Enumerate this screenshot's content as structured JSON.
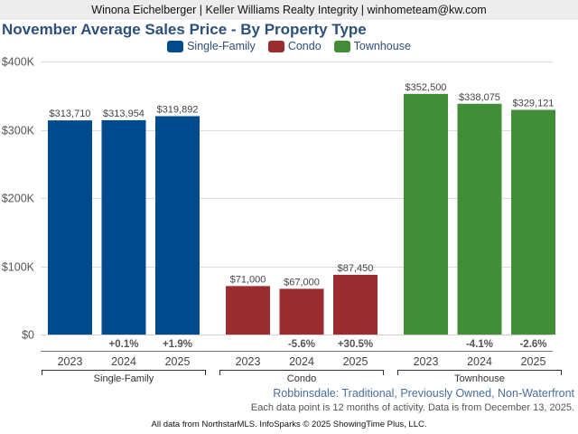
{
  "header": {
    "agent_line": "Winona Eichelberger | Keller Williams Realty Integrity | winhometeam@kw.com"
  },
  "chart_data": {
    "type": "bar",
    "title": "November Average Sales Price - By Property Type",
    "xlabel": "",
    "ylabel": "",
    "ylim": [
      0,
      400000
    ],
    "y_ticks": [
      {
        "value": 0,
        "label": "$0"
      },
      {
        "value": 100000,
        "label": "$100K"
      },
      {
        "value": 200000,
        "label": "$200K"
      },
      {
        "value": 300000,
        "label": "$300K"
      },
      {
        "value": 400000,
        "label": "$400K"
      }
    ],
    "grid": true,
    "legend_position": "top-center",
    "categories": [
      "2023",
      "2024",
      "2025"
    ],
    "groups": [
      {
        "name": "Single-Family",
        "color": "#004b8d",
        "values": [
          313710,
          313954,
          319892
        ],
        "value_labels": [
          "$313,710",
          "$313,954",
          "$319,892"
        ],
        "changes": [
          "",
          "+0.1%",
          "+1.9%"
        ]
      },
      {
        "name": "Condo",
        "color": "#9b2c2f",
        "values": [
          71000,
          67000,
          87450
        ],
        "value_labels": [
          "$71,000",
          "$67,000",
          "$87,450"
        ],
        "changes": [
          "",
          "-5.6%",
          "+30.5%"
        ]
      },
      {
        "name": "Townhouse",
        "color": "#428d37",
        "values": [
          352500,
          338075,
          329121
        ],
        "value_labels": [
          "$352,500",
          "$338,075",
          "$329,121"
        ],
        "changes": [
          "",
          "-4.1%",
          "-2.6%"
        ]
      }
    ]
  },
  "legend": [
    {
      "label": "Single-Family",
      "color": "#004b8d"
    },
    {
      "label": "Condo",
      "color": "#9b2c2f"
    },
    {
      "label": "Townhouse",
      "color": "#428d37"
    }
  ],
  "subtitle": "Robbinsdale: Traditional, Previously Owned, Non-Waterfront",
  "note": "Each data point is 12 months of activity. Data is from December 13, 2025.",
  "footer": "All data from NorthstarMLS. InfoSparks © 2025 ShowingTime Plus, LLC."
}
